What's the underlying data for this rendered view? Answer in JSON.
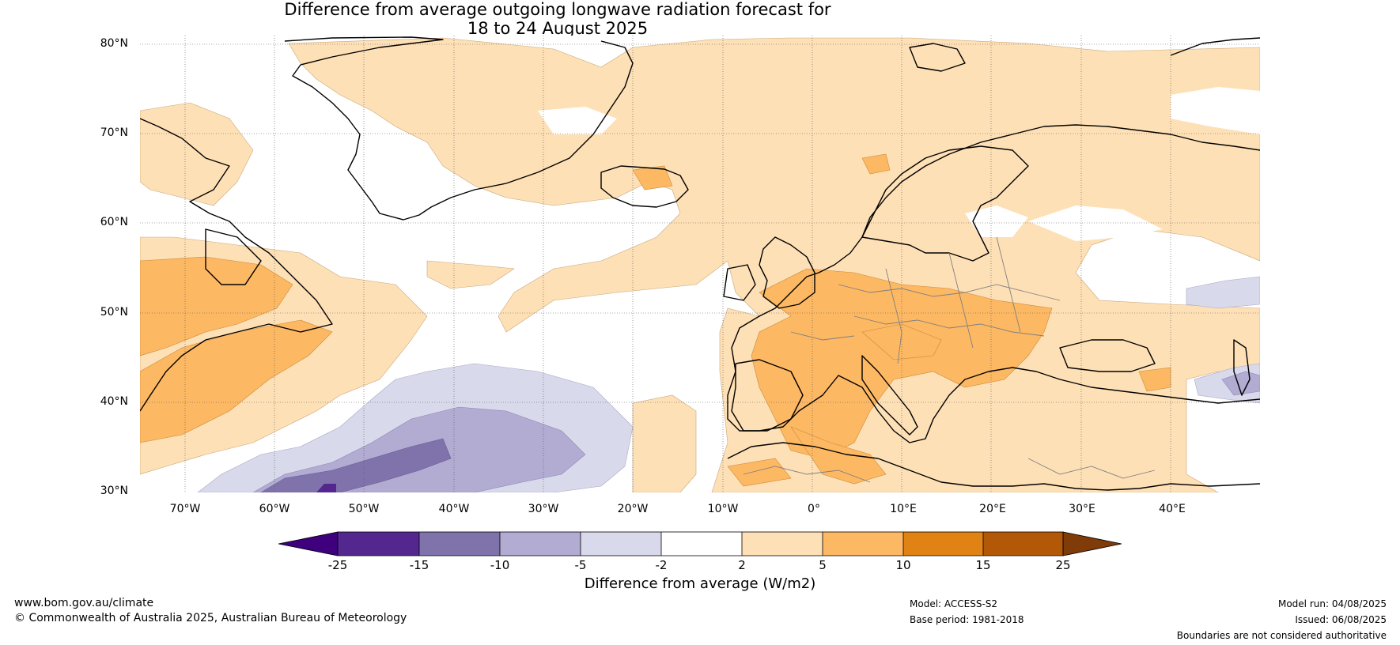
{
  "title": {
    "line1": "Difference from average outgoing longwave radiation forecast for",
    "line2": "18 to 24 August 2025"
  },
  "map": {
    "lat_labels": [
      "80°N",
      "70°N",
      "60°N",
      "50°N",
      "40°N",
      "30°N"
    ],
    "lon_labels": [
      "70°W",
      "60°W",
      "50°W",
      "40°W",
      "30°W",
      "20°W",
      "10°W",
      "0°",
      "10°E",
      "20°E",
      "30°E",
      "40°E"
    ],
    "lat_range": [
      30,
      81
    ],
    "lon_range": [
      -75,
      50
    ]
  },
  "colorbar": {
    "title": "Difference from average (W/m2)",
    "ticks": [
      "-25",
      "-15",
      "-10",
      "-5",
      "-2",
      "2",
      "5",
      "10",
      "15",
      "25"
    ],
    "colors": [
      "#3f007d",
      "#54278f",
      "#8073ac",
      "#b2abd2",
      "#d8daeb",
      "#ffffff",
      "#fee0b6",
      "#fdb863",
      "#e08214",
      "#b35806",
      "#7f3b08"
    ]
  },
  "footer": {
    "url": "www.bom.gov.au/climate",
    "copyright": "© Commonwealth of Australia 2025, Australian Bureau of Meteorology",
    "model": "Model: ACCESS-S2",
    "base_period": "Base period: 1981-2018",
    "model_run": "Model run: 04/08/2025",
    "issued": "Issued: 06/08/2025",
    "disclaimer": "Boundaries are not considered authoritative"
  }
}
